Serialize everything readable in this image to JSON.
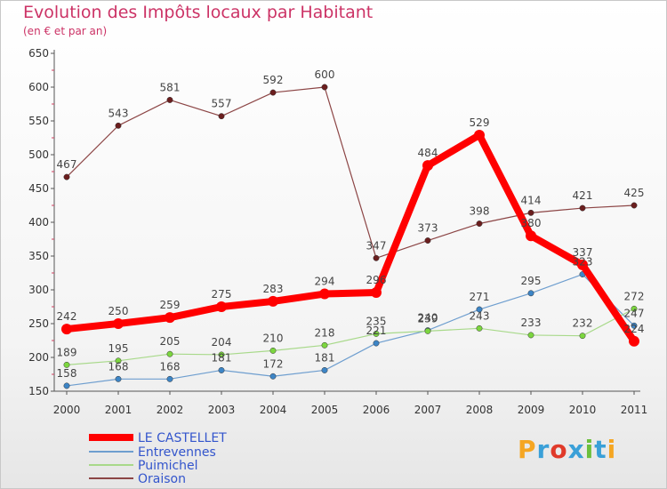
{
  "chart_data": {
    "type": "line",
    "title": "Evolution des Impôts locaux par Habitant",
    "subtitle": "(en € et par an)",
    "xlabel": "",
    "ylabel": "",
    "ylim": [
      150,
      650
    ],
    "yticks": [
      150,
      200,
      250,
      300,
      350,
      400,
      450,
      500,
      550,
      600,
      650
    ],
    "x": [
      "2000",
      "2001",
      "2002",
      "2003",
      "2004",
      "2005",
      "2006",
      "2007",
      "2008",
      "2009",
      "2010",
      "2011"
    ],
    "grid": false,
    "legend_position": "bottom-left",
    "series": [
      {
        "name": "LE CASTELLET",
        "color": "#ff0000",
        "marker_color": "#ff0000",
        "values": [
          242,
          250,
          259,
          275,
          283,
          294,
          296,
          484,
          529,
          380,
          337,
          224
        ]
      },
      {
        "name": "Entrevennes",
        "color": "#6e9ecf",
        "marker_color": "#3d85c6",
        "values": [
          158,
          168,
          168,
          181,
          172,
          181,
          221,
          240,
          271,
          295,
          323,
          247
        ]
      },
      {
        "name": "Puimichel",
        "color": "#a8d98a",
        "marker_color": "#7cd63f",
        "values": [
          189,
          195,
          205,
          204,
          210,
          218,
          235,
          239,
          243,
          233,
          232,
          272
        ]
      },
      {
        "name": "Oraison",
        "color": "#8c4545",
        "marker_color": "#6b1e1e",
        "values": [
          467,
          543,
          581,
          557,
          592,
          600,
          347,
          373,
          398,
          414,
          421,
          425
        ]
      }
    ]
  },
  "logo": {
    "text": "Proxiti",
    "letters": [
      "P",
      "r",
      "o",
      "x",
      "i",
      "t",
      "i"
    ],
    "colors": [
      "#f5a623",
      "#3aa0d8",
      "#e03a2a",
      "#3aa0d8",
      "#6cbf3c",
      "#3aa0d8",
      "#f5a623"
    ]
  }
}
